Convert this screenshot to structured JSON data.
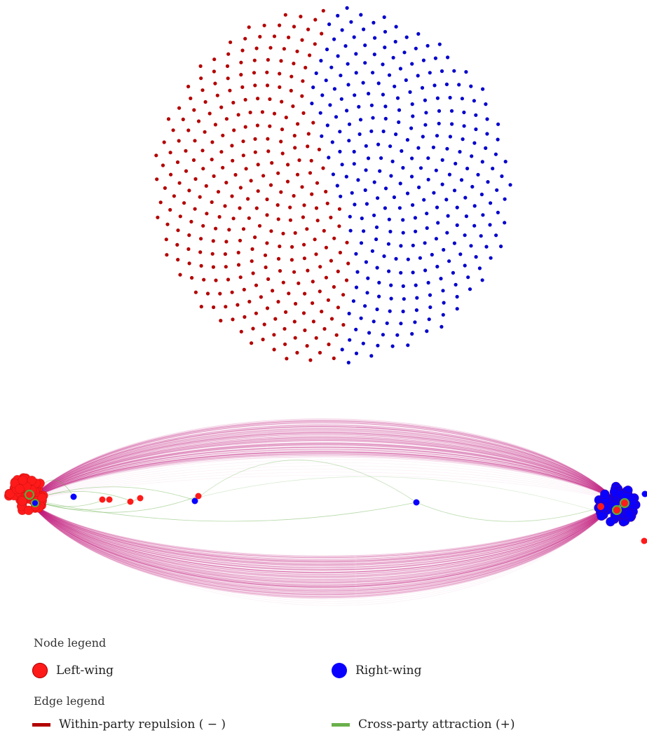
{
  "colors": {
    "left_node": "#b30000",
    "right_node": "#0000cc",
    "left_node_bright": "#ff1a1a",
    "right_node_bright": "#0a00ff",
    "repulsion_edge": "#c2187a",
    "attraction_edge": "#5aaa3a"
  },
  "node_counts": {
    "left": 310,
    "right": 310
  },
  "legend": {
    "node_heading": "Node legend",
    "left_label": "Left-wing",
    "right_label": "Right-wing",
    "edge_heading": "Edge legend",
    "repulsion_label": "Within-party repulsion ( − )",
    "attraction_label": "Cross-party attraction (+)"
  }
}
